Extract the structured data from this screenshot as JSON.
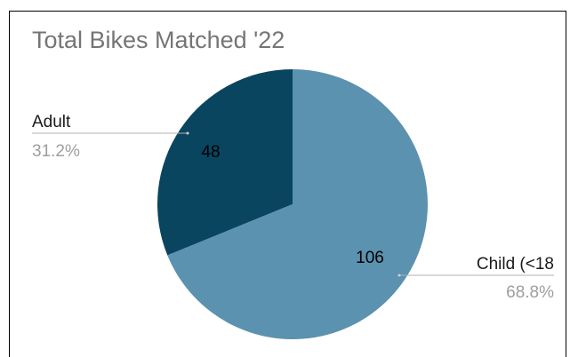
{
  "chart_data": {
    "type": "pie",
    "title": "Total Bikes Matched '22",
    "labels": [
      "Adult",
      "Child (<18"
    ],
    "values": [
      48,
      106
    ],
    "value_labels": [
      "48",
      "106"
    ],
    "percent_labels": [
      "31.2%",
      "68.8%"
    ],
    "colors": [
      "#0a4560",
      "#5b92af"
    ],
    "legend": "none",
    "label_position": "outside with leader lines"
  },
  "colors": {
    "title": "#757575",
    "label_text": "#1a1a1a",
    "percent_text": "#9e9e9e",
    "leader_line": "#b0b0b0",
    "slice_value_text": "#000000"
  }
}
